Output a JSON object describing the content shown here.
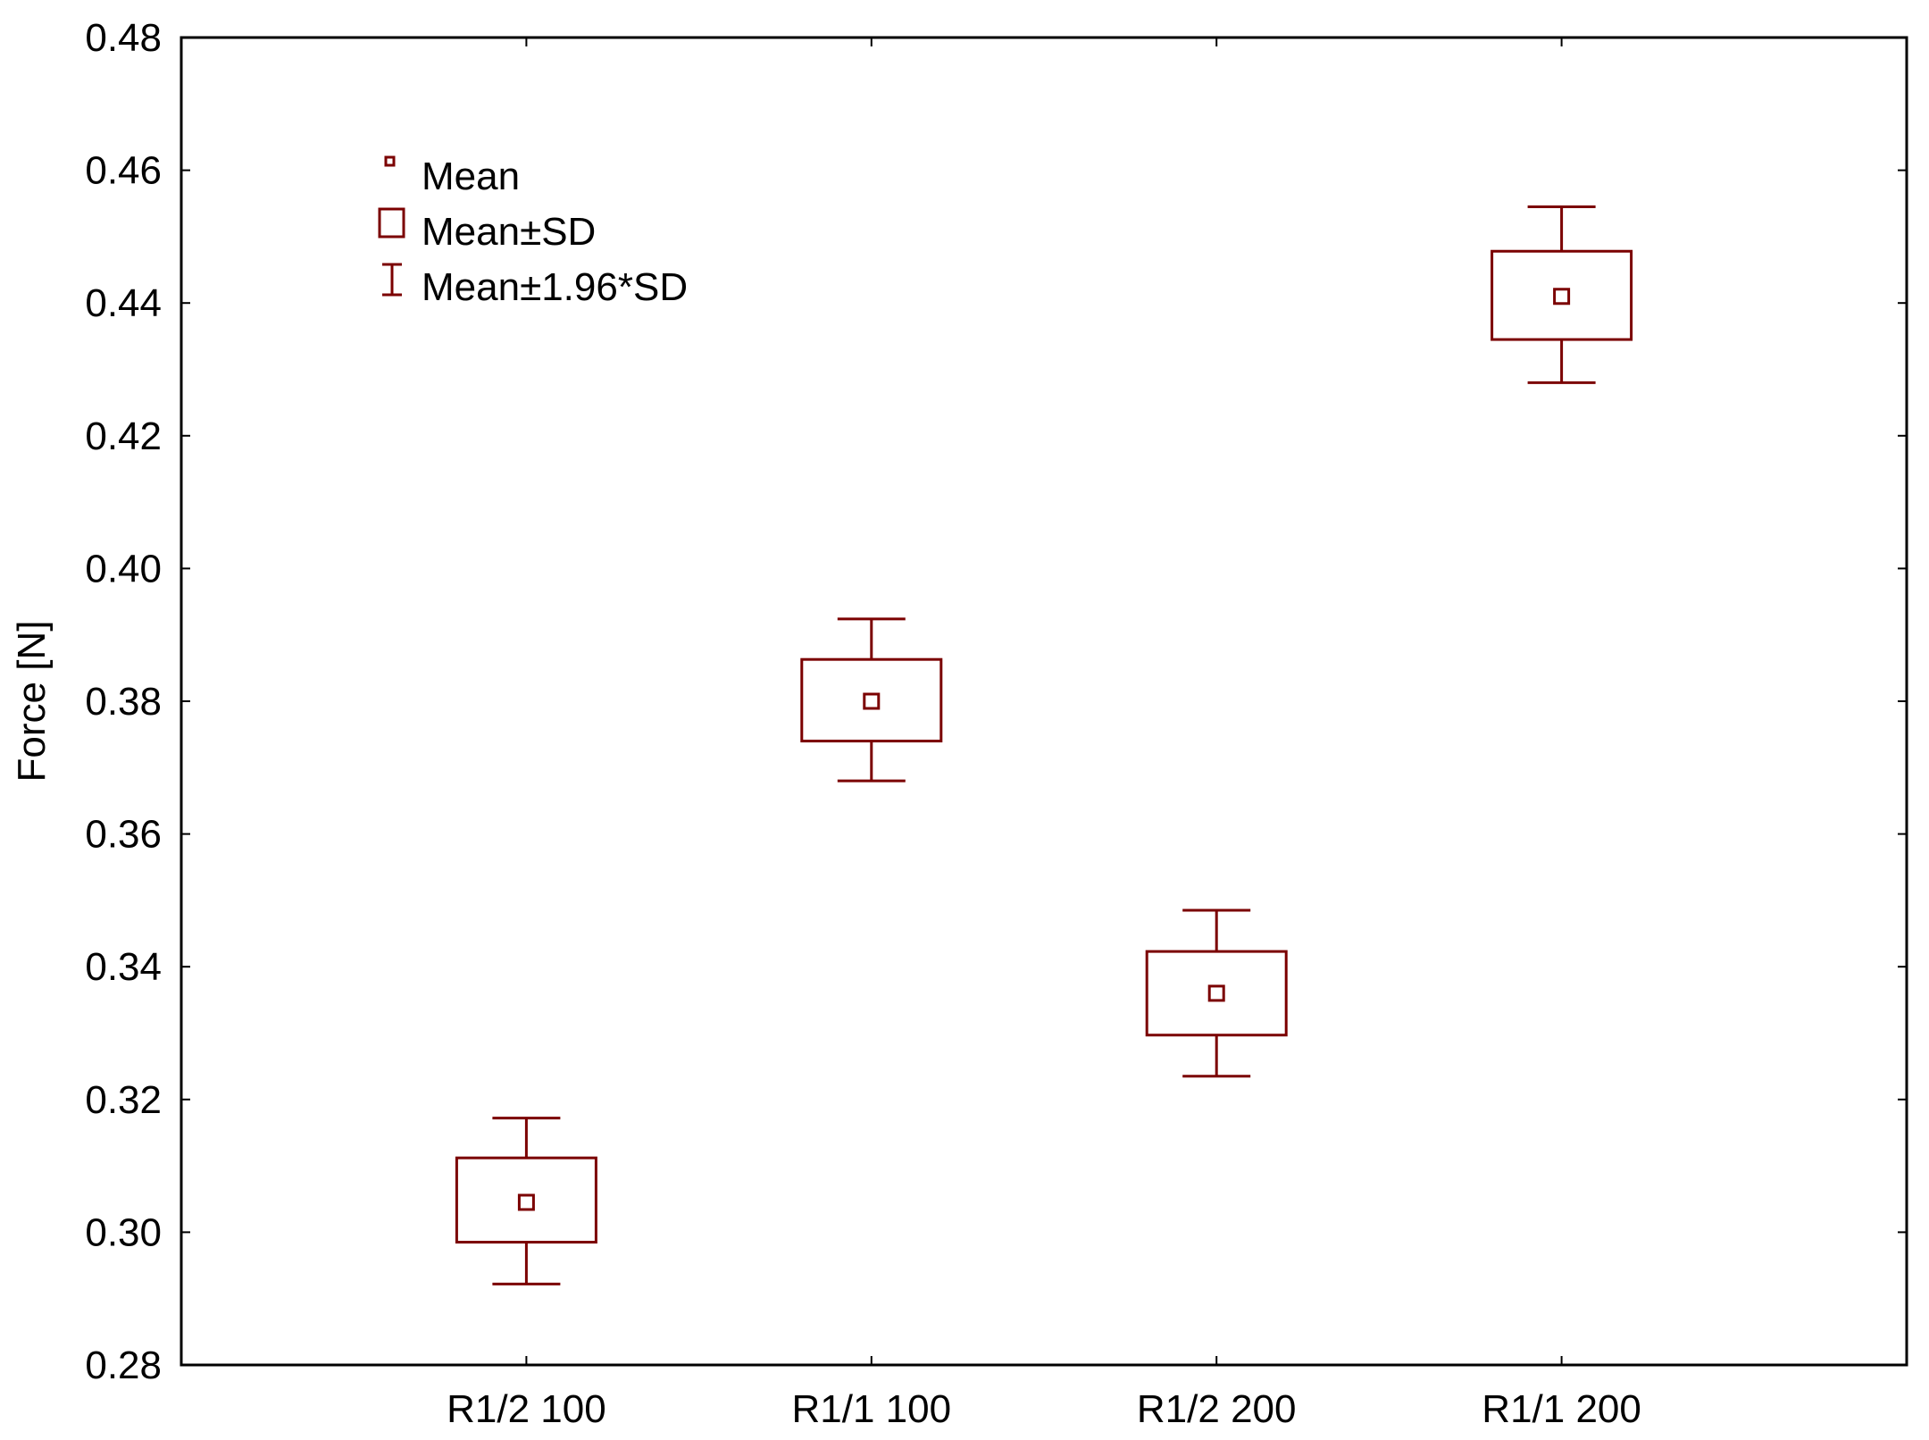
{
  "chart_data": {
    "type": "box",
    "title": "",
    "xlabel": "",
    "ylabel": "Force [N]",
    "ylim": [
      0.28,
      0.48
    ],
    "yticks": [
      "0.28",
      "0.30",
      "0.32",
      "0.34",
      "0.36",
      "0.38",
      "0.40",
      "0.42",
      "0.44",
      "0.46",
      "0.48"
    ],
    "categories": [
      "R1/2 100",
      "R1/1 100",
      "R1/2 200",
      "R1/1 200"
    ],
    "series": [
      {
        "name": "Force",
        "mean": [
          0.3045,
          0.38,
          0.336,
          0.441
        ],
        "sd_low": [
          0.2985,
          0.374,
          0.3297,
          0.4345
        ],
        "sd_high": [
          0.3112,
          0.3863,
          0.3423,
          0.4478
        ],
        "whisker_low": [
          0.2922,
          0.368,
          0.3235,
          0.428
        ],
        "whisker_high": [
          0.3172,
          0.3924,
          0.3485,
          0.4545
        ]
      }
    ],
    "legend": {
      "placement": "top-left",
      "items": [
        "Mean",
        "Mean±SD",
        "Mean±1.96*SD"
      ]
    },
    "grid": false,
    "color": "#7b0000"
  }
}
